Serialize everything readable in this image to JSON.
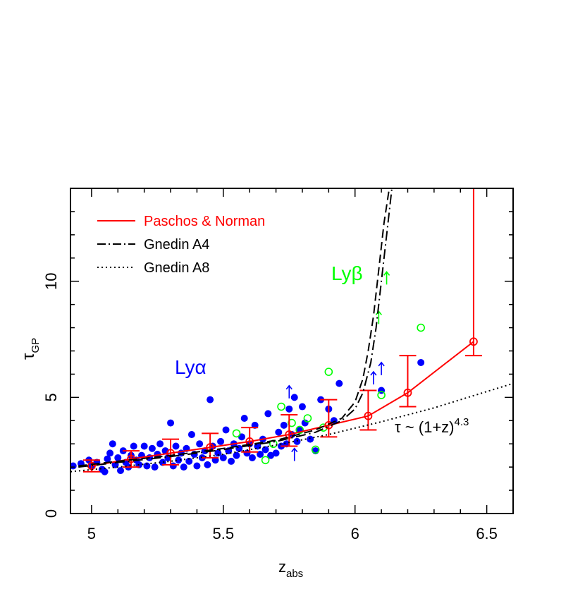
{
  "chart_data": {
    "type": "scatter",
    "xlabel": "z",
    "xlabel_sub": "abs",
    "ylabel": "τ",
    "ylabel_sub": "GP",
    "xlim": [
      4.92,
      6.6
    ],
    "ylim": [
      0,
      14
    ],
    "xticks": [
      5,
      5.5,
      6,
      6.5
    ],
    "xtick_labels": [
      "5",
      "5.5",
      "6",
      "6.5"
    ],
    "yticks": [
      0,
      5,
      10
    ],
    "ytick_labels": [
      "0",
      "5",
      "10"
    ],
    "grid": false,
    "legend_position": "top-left",
    "legend": [
      {
        "label": "Paschos & Norman",
        "style": "solid",
        "color": "#ff0000"
      },
      {
        "label": "Gnedin A4",
        "style": "dash-dot",
        "color": "#000000"
      },
      {
        "label": "Gnedin A8",
        "style": "dotted",
        "color": "#000000"
      }
    ],
    "annotations": {
      "lya": "Lyα",
      "lyb": "Lyβ",
      "powerlaw_lhs": "τ ~ (1+z)",
      "powerlaw_exp": "4.3"
    },
    "series": [
      {
        "name": "Lyα",
        "marker": "filled-circle",
        "color": "#0000ff",
        "points": [
          [
            4.93,
            2.05
          ],
          [
            4.96,
            2.15
          ],
          [
            4.99,
            2.3
          ],
          [
            5.0,
            2.05
          ],
          [
            5.02,
            2.2
          ],
          [
            5.04,
            1.9
          ],
          [
            5.05,
            1.8
          ],
          [
            5.06,
            2.35
          ],
          [
            5.07,
            2.6
          ],
          [
            5.08,
            3.0
          ],
          [
            5.09,
            2.1
          ],
          [
            5.1,
            2.4
          ],
          [
            5.11,
            1.85
          ],
          [
            5.12,
            2.7
          ],
          [
            5.13,
            2.2
          ],
          [
            5.14,
            2.0
          ],
          [
            5.15,
            2.5
          ],
          [
            5.16,
            2.9
          ],
          [
            5.17,
            2.3
          ],
          [
            5.18,
            2.1
          ],
          [
            5.19,
            2.5
          ],
          [
            5.2,
            2.9
          ],
          [
            5.21,
            2.05
          ],
          [
            5.22,
            2.4
          ],
          [
            5.23,
            2.8
          ],
          [
            5.24,
            2.0
          ],
          [
            5.25,
            2.55
          ],
          [
            5.26,
            3.0
          ],
          [
            5.27,
            2.2
          ],
          [
            5.28,
            2.7
          ],
          [
            5.29,
            2.4
          ],
          [
            5.3,
            3.9
          ],
          [
            5.31,
            2.05
          ],
          [
            5.32,
            2.9
          ],
          [
            5.33,
            2.3
          ],
          [
            5.34,
            2.6
          ],
          [
            5.35,
            2.0
          ],
          [
            5.36,
            2.8
          ],
          [
            5.37,
            2.25
          ],
          [
            5.38,
            3.4
          ],
          [
            5.39,
            2.55
          ],
          [
            5.4,
            2.05
          ],
          [
            5.41,
            3.0
          ],
          [
            5.42,
            2.4
          ],
          [
            5.43,
            2.7
          ],
          [
            5.44,
            2.1
          ],
          [
            5.45,
            4.9
          ],
          [
            5.46,
            2.9
          ],
          [
            5.47,
            2.3
          ],
          [
            5.48,
            2.6
          ],
          [
            5.49,
            3.1
          ],
          [
            5.5,
            2.4
          ],
          [
            5.51,
            3.6
          ],
          [
            5.52,
            2.7
          ],
          [
            5.53,
            2.25
          ],
          [
            5.54,
            3.0
          ],
          [
            5.55,
            2.5
          ],
          [
            5.56,
            2.8
          ],
          [
            5.57,
            3.3
          ],
          [
            5.58,
            4.1
          ],
          [
            5.59,
            2.6
          ],
          [
            5.6,
            3.0
          ],
          [
            5.61,
            2.4
          ],
          [
            5.62,
            3.8
          ],
          [
            5.63,
            2.9
          ],
          [
            5.64,
            2.55
          ],
          [
            5.65,
            3.2
          ],
          [
            5.66,
            2.75
          ],
          [
            5.67,
            4.3
          ],
          [
            5.68,
            2.5
          ],
          [
            5.7,
            2.6
          ],
          [
            5.71,
            3.5
          ],
          [
            5.72,
            2.9
          ],
          [
            5.73,
            3.8
          ],
          [
            5.74,
            3.0
          ],
          [
            5.75,
            4.5
          ],
          [
            5.76,
            3.4
          ],
          [
            5.77,
            5.0
          ],
          [
            5.78,
            3.1
          ],
          [
            5.79,
            3.6
          ],
          [
            5.8,
            4.6
          ],
          [
            5.81,
            3.9
          ],
          [
            5.83,
            3.2
          ],
          [
            5.85,
            2.7
          ],
          [
            5.87,
            4.9
          ],
          [
            5.9,
            4.5
          ],
          [
            5.92,
            4.0
          ],
          [
            5.94,
            5.6
          ],
          [
            6.1,
            5.3
          ],
          [
            6.25,
            6.5
          ]
        ]
      },
      {
        "name": "Lyβ",
        "marker": "open-circle",
        "color": "#00ff00",
        "points": [
          [
            5.55,
            3.45
          ],
          [
            5.66,
            2.3
          ],
          [
            5.69,
            3.0
          ],
          [
            5.72,
            4.6
          ],
          [
            5.76,
            3.9
          ],
          [
            5.79,
            3.6
          ],
          [
            5.82,
            4.1
          ],
          [
            5.85,
            2.75
          ],
          [
            5.88,
            3.7
          ],
          [
            5.9,
            6.1
          ],
          [
            6.1,
            5.1
          ],
          [
            6.25,
            8.0
          ]
        ]
      },
      {
        "name": "Lyα lower limits",
        "marker": "up-arrow",
        "color": "#0000ff",
        "points": [
          [
            5.75,
            5.2
          ],
          [
            5.77,
            2.5
          ],
          [
            6.07,
            5.8
          ],
          [
            6.1,
            6.2
          ]
        ]
      },
      {
        "name": "Lyβ lower limits",
        "marker": "up-arrow",
        "color": "#00ff00",
        "points": [
          [
            6.09,
            8.4
          ],
          [
            6.12,
            10.1
          ]
        ]
      },
      {
        "name": "Paschos & Norman",
        "style": "solid-line-with-open-circles",
        "color": "#ff0000",
        "points": [
          [
            5.0,
            2.05
          ],
          [
            5.15,
            2.35
          ],
          [
            5.3,
            2.6
          ],
          [
            5.45,
            2.85
          ],
          [
            5.6,
            3.1
          ],
          [
            5.75,
            3.4
          ],
          [
            5.9,
            3.8
          ],
          [
            6.05,
            4.2
          ],
          [
            6.2,
            5.2
          ],
          [
            6.45,
            7.4
          ]
        ],
        "errors": [
          [
            0.25,
            0.25
          ],
          [
            0.35,
            0.35
          ],
          [
            0.5,
            0.6
          ],
          [
            0.45,
            0.6
          ],
          [
            0.45,
            0.6
          ],
          [
            0.5,
            0.85
          ],
          [
            0.5,
            1.1
          ],
          [
            0.6,
            1.1
          ],
          [
            0.6,
            1.6
          ],
          [
            0.6,
            7.0
          ]
        ]
      },
      {
        "name": "Gnedin A4",
        "style": "dash-dot",
        "color": "#000000",
        "points": [
          [
            4.95,
            2.0
          ],
          [
            5.1,
            2.2
          ],
          [
            5.3,
            2.45
          ],
          [
            5.5,
            2.75
          ],
          [
            5.7,
            3.1
          ],
          [
            5.85,
            3.5
          ],
          [
            5.95,
            4.0
          ],
          [
            6.0,
            4.5
          ],
          [
            6.03,
            5.2
          ],
          [
            6.06,
            6.5
          ],
          [
            6.08,
            8.0
          ],
          [
            6.1,
            10.0
          ],
          [
            6.12,
            12.0
          ],
          [
            6.14,
            14.0
          ]
        ]
      },
      {
        "name": "Gnedin A4 (second)",
        "style": "dashed",
        "color": "#000000",
        "points": [
          [
            4.95,
            2.05
          ],
          [
            5.1,
            2.25
          ],
          [
            5.3,
            2.5
          ],
          [
            5.5,
            2.8
          ],
          [
            5.7,
            3.15
          ],
          [
            5.85,
            3.6
          ],
          [
            5.95,
            4.1
          ],
          [
            6.0,
            4.8
          ],
          [
            6.03,
            5.8
          ],
          [
            6.05,
            7.0
          ],
          [
            6.07,
            8.5
          ],
          [
            6.09,
            10.5
          ],
          [
            6.11,
            12.5
          ],
          [
            6.13,
            14.0
          ]
        ]
      },
      {
        "name": "Gnedin A8",
        "style": "dotted",
        "color": "#000000",
        "points": [
          [
            4.92,
            1.8
          ],
          [
            5.1,
            2.0
          ],
          [
            5.3,
            2.25
          ],
          [
            5.5,
            2.55
          ],
          [
            5.7,
            2.95
          ],
          [
            5.9,
            3.4
          ],
          [
            6.1,
            3.95
          ],
          [
            6.3,
            4.55
          ],
          [
            6.5,
            5.25
          ],
          [
            6.6,
            5.6
          ]
        ]
      }
    ]
  }
}
